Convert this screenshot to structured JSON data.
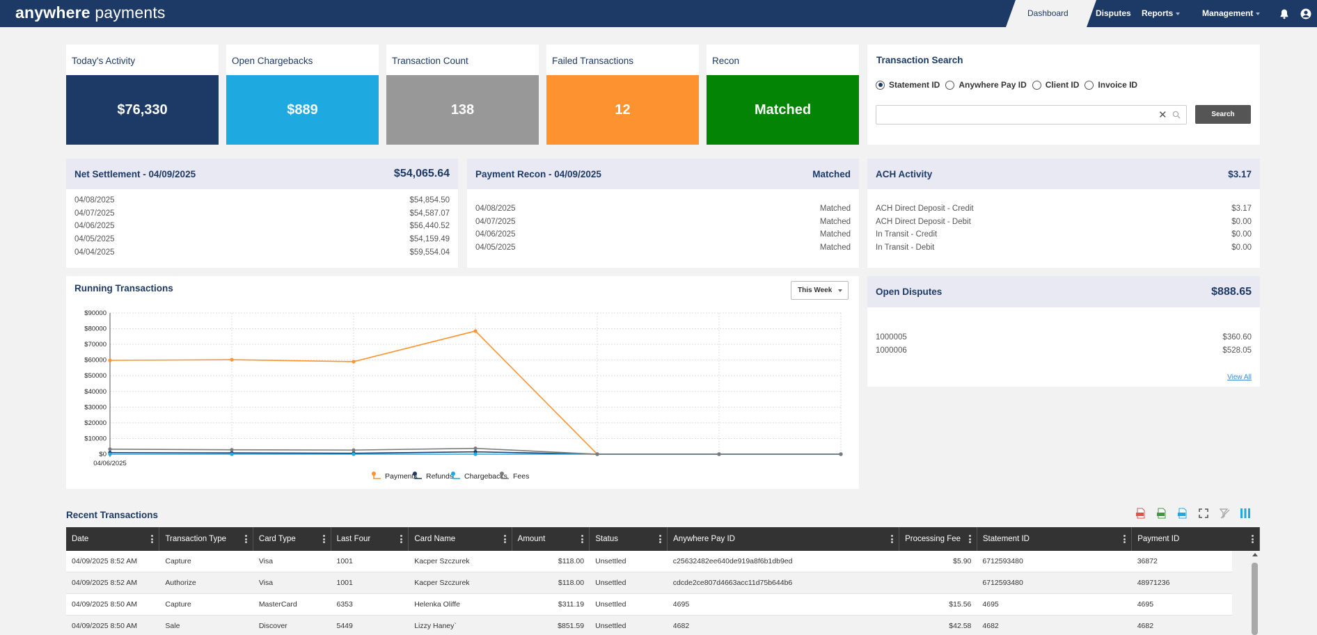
{
  "app": {
    "logo_bold": "anywhere",
    "logo_light": "payments"
  },
  "nav": {
    "items": [
      {
        "label": "Dashboard",
        "active": true
      },
      {
        "label": "Disputes"
      },
      {
        "label": "Reports"
      },
      {
        "label": "Management"
      }
    ],
    "icons": [
      "bell-icon",
      "user-icon"
    ]
  },
  "kpis": [
    {
      "title": "Today's Activity",
      "value": "$76,330",
      "color": "#1d3a66"
    },
    {
      "title": "Open Chargebacks",
      "value": "$889",
      "color": "#1fa9e1"
    },
    {
      "title": "Transaction Count",
      "value": "138",
      "color": "#989898"
    },
    {
      "title": "Failed Transactions",
      "value": "12",
      "color": "#fd9330"
    },
    {
      "title": "Recon",
      "value": "Matched",
      "color": "#048404"
    }
  ],
  "transaction_search": {
    "title": "Transaction Search",
    "options": [
      "Statement ID",
      "Anywhere Pay ID",
      "Client ID",
      "Invoice ID"
    ],
    "selected": "Statement ID",
    "input_value": "",
    "button_label": "Search"
  },
  "net_settlement": {
    "title": "Net Settlement - 04/09/2025",
    "total": "$54,065.64",
    "rows": [
      {
        "date": "04/08/2025",
        "amount": "$54,854.50"
      },
      {
        "date": "04/07/2025",
        "amount": "$54,587.07"
      },
      {
        "date": "04/06/2025",
        "amount": "$56,440.52"
      },
      {
        "date": "04/05/2025",
        "amount": "$54,159.49"
      },
      {
        "date": "04/04/2025",
        "amount": "$59,554.04"
      }
    ]
  },
  "payment_recon": {
    "title": "Payment Recon - 04/09/2025",
    "status": "Matched",
    "rows": [
      {
        "date": "04/08/2025",
        "status": "Matched"
      },
      {
        "date": "04/07/2025",
        "status": "Matched"
      },
      {
        "date": "04/06/2025",
        "status": "Matched"
      },
      {
        "date": "04/05/2025",
        "status": "Matched"
      }
    ]
  },
  "ach_activity": {
    "title": "ACH Activity",
    "total": "$3.17",
    "rows": [
      {
        "label": "ACH Direct Deposit - Credit",
        "amount": "$3.17"
      },
      {
        "label": "ACH Direct Deposit - Debit",
        "amount": "$0.00"
      },
      {
        "label": "In Transit - Credit",
        "amount": "$0.00"
      },
      {
        "label": "In Transit - Debit",
        "amount": "$0.00"
      }
    ]
  },
  "open_disputes": {
    "title": "Open Disputes",
    "total": "$888.65",
    "rows": [
      {
        "id": "1000005",
        "amount": "$360.60"
      },
      {
        "id": "1000006",
        "amount": "$528.05"
      }
    ],
    "view_all": "View All"
  },
  "running_transactions": {
    "title": "Running Transactions",
    "range_label": "This Week"
  },
  "chart_data": {
    "type": "line",
    "title": "",
    "x": [
      "04/06/2025",
      "",
      "",
      "",
      "",
      "",
      ""
    ],
    "ylim": [
      0,
      90000
    ],
    "y_ticks": [
      "$0",
      "$10000",
      "$20000",
      "$30000",
      "$40000",
      "$50000",
      "$60000",
      "$70000",
      "$80000",
      "$90000"
    ],
    "grid": true,
    "legend_position": "bottom",
    "series": [
      {
        "name": "Payments",
        "color": "#fd9330",
        "values": [
          59800,
          60200,
          59000,
          78500,
          0,
          0,
          0
        ]
      },
      {
        "name": "Refunds",
        "color": "#1d3a66",
        "values": [
          1000,
          800,
          600,
          1500,
          0,
          0,
          0
        ]
      },
      {
        "name": "Chargebacks",
        "color": "#1fa9e1",
        "values": [
          0,
          0,
          0,
          0,
          0,
          0,
          0
        ]
      },
      {
        "name": "Fees",
        "color": "#7b7b7b",
        "values": [
          3200,
          2800,
          2600,
          3700,
          0,
          0,
          0
        ]
      }
    ]
  },
  "recent_transactions": {
    "title": "Recent Transactions",
    "toolbar_icons": [
      "pdf-icon",
      "excel-icon",
      "csv-icon",
      "fullscreen-icon",
      "filter-clear-icon",
      "columns-icon"
    ],
    "columns": [
      "Date",
      "Transaction Type",
      "Card Type",
      "Last Four",
      "Card Name",
      "Amount",
      "Status",
      "Anywhere Pay ID",
      "Processing Fee",
      "Statement ID",
      "Payment ID"
    ],
    "rows": [
      [
        "04/09/2025 8:52 AM",
        "Capture",
        "Visa",
        "1001",
        "Kacper Szczurek",
        "$118.00",
        "Unsettled",
        "c25632482ee640de919a8f6b1db9ed",
        "$5.90",
        "6712593480",
        "36872"
      ],
      [
        "04/09/2025 8:52 AM",
        "Authorize",
        "Visa",
        "1001",
        "Kacper Szczurek",
        "$118.00",
        "Unsettled",
        "cdcde2ce807d4663acc11d75b644b6",
        "",
        "6712593480",
        "48971236"
      ],
      [
        "04/09/2025 8:50 AM",
        "Capture",
        "MasterCard",
        "6353",
        "Helenka Oliffe",
        "$311.19",
        "Unsettled",
        "4695",
        "$15.56",
        "4695",
        "4695"
      ],
      [
        "04/09/2025 8:50 AM",
        "Sale",
        "Discover",
        "5449",
        "Lizzy Haney`",
        "$851.59",
        "Unsettled",
        "4682",
        "$42.58",
        "4682",
        "4682"
      ]
    ]
  }
}
